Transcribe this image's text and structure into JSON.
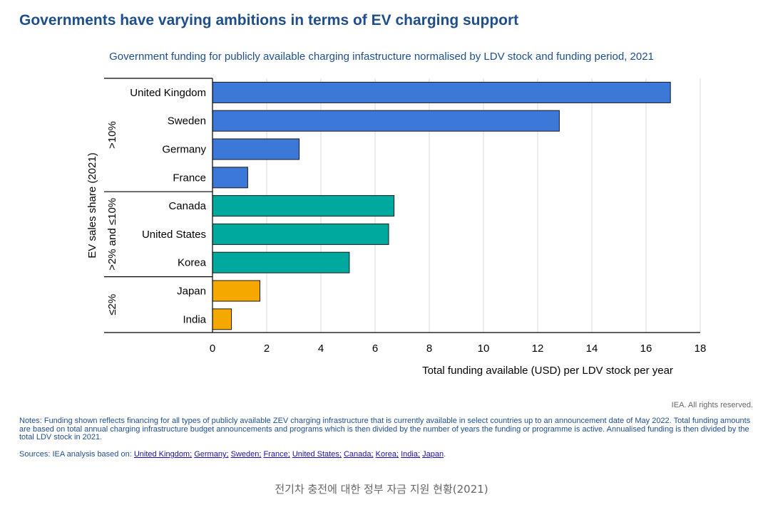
{
  "header": {
    "title": "Governments have varying ambitions in terms of EV charging support"
  },
  "chart_data": {
    "type": "bar",
    "orientation": "horizontal",
    "title": "Government funding for publicly available charging infastructure normalised by LDV stock and funding period, 2021",
    "xlabel": "Total funding available (USD) per LDV stock per year",
    "ylabel": "EV sales share (2021)",
    "xlim": [
      0,
      18
    ],
    "xticks": [
      0,
      2,
      4,
      6,
      8,
      10,
      12,
      14,
      16,
      18
    ],
    "grid": "vertical",
    "groups": [
      {
        "label": ">10%",
        "color": "#3b78d8",
        "categories": [
          "United Kingdom",
          "Sweden",
          "Germany",
          "France"
        ],
        "values": [
          16.9,
          12.8,
          3.2,
          1.3
        ]
      },
      {
        "label": ">2% and ≤10%",
        "color": "#00a99d",
        "categories": [
          "Canada",
          "United States",
          "Korea"
        ],
        "values": [
          6.7,
          6.5,
          5.05
        ]
      },
      {
        "label": "≤2%",
        "color": "#f5a800",
        "categories": [
          "Japan",
          "India"
        ],
        "values": [
          1.75,
          0.7
        ]
      }
    ]
  },
  "footer": {
    "copyright": "IEA. All rights reserved.",
    "notes": "Notes: Funding shown reflects financing for all types of publicly available ZEV charging infrastructure that is currently available in select countries up to an announcement date of May 2022. Total funding amounts are based on total annual charging infrastructure budget announcements and programs which is then divided by the number of years the funding or programme is active. Annualised funding is then divided by the total LDV stock in 2021.",
    "sources_prefix": "Sources: IEA analysis based on: ",
    "source_links": [
      "United Kingdom;",
      "Germany;",
      "Sweden;",
      "France;",
      "United States;",
      "Canada;",
      "Korea;",
      "India;",
      "Japan"
    ],
    "sources_suffix": "."
  },
  "caption": "전기차 충전에 대한 정부 자금 지원 현황(2021)"
}
